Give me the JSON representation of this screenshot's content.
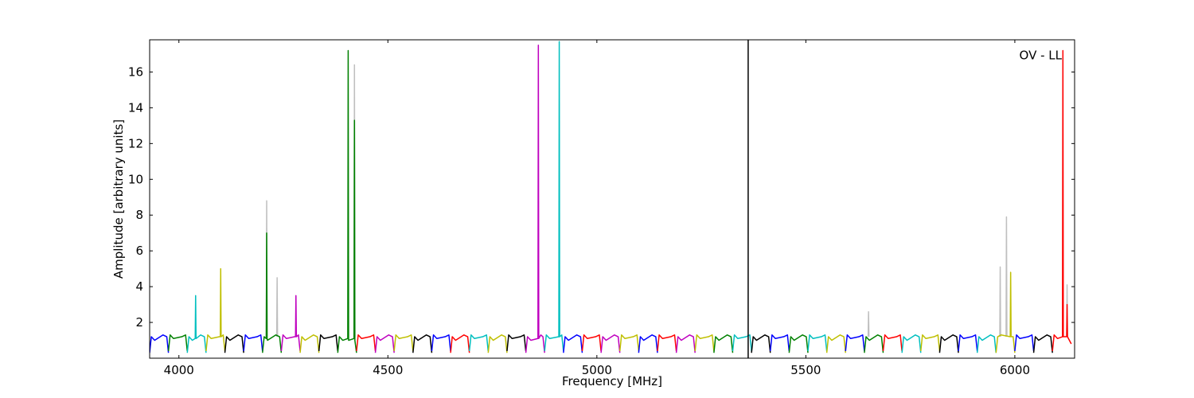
{
  "chart_data": {
    "type": "line",
    "annotation": "OV - LL",
    "x_label": "Frequency [MHz]",
    "y_label": "Amplitude [arbitrary units]",
    "xlim": [
      3930,
      6143
    ],
    "ylim": [
      0,
      17.8
    ],
    "xticks": [
      4000,
      4500,
      5000,
      5500,
      6000
    ],
    "yticks": [
      2,
      4,
      6,
      8,
      10,
      12,
      14,
      16
    ],
    "vlines": [
      5362
    ],
    "vline_color": "#000000",
    "series": [
      {
        "color": "#bfbfbf",
        "x": [
          4209,
          4210,
          4211,
          null,
          4234,
          4235,
          4236,
          null,
          4419,
          4420,
          4421,
          null,
          5649,
          5650,
          5651,
          null,
          5964,
          5965,
          5966,
          null,
          5979,
          5980,
          5981,
          null,
          6124,
          6125,
          6126
        ],
        "values": [
          1.2,
          8.8,
          1.2,
          null,
          1.2,
          4.5,
          1.2,
          null,
          1.2,
          16.4,
          1.2,
          null,
          1.2,
          2.6,
          1.2,
          null,
          1.2,
          5.1,
          1.2,
          null,
          1.2,
          7.9,
          1.2,
          null,
          1.2,
          4.1,
          1.2
        ]
      },
      {
        "color": "#0000ff",
        "x": [
          3930,
          3934,
          3942,
          3962,
          3971,
          3975
        ],
        "values": [
          0.3,
          1.2,
          1.0,
          1.3,
          1.2,
          0.3
        ]
      },
      {
        "color": "#008000",
        "x": [
          3975,
          3979,
          3987,
          4007,
          4016,
          4020
        ],
        "values": [
          0.4,
          1.3,
          1.1,
          1.2,
          1.3,
          0.4
        ]
      },
      {
        "color": "#00bfbf",
        "x": [
          4020,
          4024,
          4032,
          4039,
          4040,
          4041,
          4052,
          4061,
          4065
        ],
        "values": [
          0.3,
          1.2,
          1.0,
          1.1,
          3.5,
          1.1,
          1.3,
          1.2,
          0.3
        ]
      },
      {
        "color": "#bfbf00",
        "x": [
          4065,
          4069,
          4077,
          4097,
          4099,
          4100,
          4101,
          4106,
          4110
        ],
        "values": [
          0.4,
          1.3,
          1.1,
          1.2,
          1.2,
          5.0,
          1.2,
          1.3,
          0.4
        ]
      },
      {
        "color": "#000000",
        "x": [
          4110,
          4114,
          4122,
          4142,
          4151,
          4155
        ],
        "values": [
          0.3,
          1.2,
          1.0,
          1.3,
          1.2,
          0.3
        ]
      },
      {
        "color": "#0000ff",
        "x": [
          4155,
          4159,
          4167,
          4187,
          4196,
          4200
        ],
        "values": [
          0.4,
          1.3,
          1.1,
          1.2,
          1.3,
          0.4
        ]
      },
      {
        "color": "#008000",
        "x": [
          4200,
          4204,
          4209,
          4210,
          4211,
          4212,
          4232,
          4241,
          4245
        ],
        "values": [
          0.3,
          1.2,
          1.1,
          7.0,
          1.1,
          1.0,
          1.3,
          1.2,
          0.3
        ]
      },
      {
        "color": "#bf00bf",
        "x": [
          4245,
          4249,
          4257,
          4277,
          4279,
          4280,
          4281,
          4286,
          4290
        ],
        "values": [
          0.4,
          1.3,
          1.1,
          1.2,
          1.2,
          3.5,
          1.2,
          1.3,
          0.4
        ]
      },
      {
        "color": "#bfbf00",
        "x": [
          4290,
          4294,
          4302,
          4322,
          4331,
          4335
        ],
        "values": [
          0.3,
          1.2,
          1.0,
          1.3,
          1.2,
          0.3
        ]
      },
      {
        "color": "#000000",
        "x": [
          4335,
          4339,
          4347,
          4367,
          4376,
          4380
        ],
        "values": [
          0.4,
          1.3,
          1.1,
          1.2,
          1.3,
          0.4
        ]
      },
      {
        "color": "#008000",
        "x": [
          4380,
          4384,
          4392,
          4404,
          4405,
          4406,
          4419,
          4420,
          4421,
          4425
        ],
        "values": [
          0.3,
          1.2,
          1.0,
          1.1,
          17.2,
          1.0,
          1.1,
          13.3,
          1.0,
          0.3
        ]
      },
      {
        "color": "#ff0000",
        "x": [
          4425,
          4429,
          4437,
          4457,
          4466,
          4470
        ],
        "values": [
          0.4,
          1.3,
          1.1,
          1.2,
          1.3,
          0.4
        ]
      },
      {
        "color": "#bf00bf",
        "x": [
          4470,
          4474,
          4482,
          4502,
          4511,
          4515
        ],
        "values": [
          0.3,
          1.2,
          1.0,
          1.3,
          1.2,
          0.3
        ]
      },
      {
        "color": "#bfbf00",
        "x": [
          4515,
          4519,
          4527,
          4547,
          4556,
          4560
        ],
        "values": [
          0.4,
          1.3,
          1.1,
          1.2,
          1.3,
          0.4
        ]
      },
      {
        "color": "#000000",
        "x": [
          4560,
          4564,
          4572,
          4592,
          4601,
          4605
        ],
        "values": [
          0.3,
          1.2,
          1.0,
          1.3,
          1.2,
          0.3
        ]
      },
      {
        "color": "#0000ff",
        "x": [
          4605,
          4609,
          4617,
          4637,
          4646,
          4650
        ],
        "values": [
          0.4,
          1.3,
          1.1,
          1.2,
          1.3,
          0.4
        ]
      },
      {
        "color": "#ff0000",
        "x": [
          4650,
          4654,
          4662,
          4682,
          4691,
          4695
        ],
        "values": [
          0.3,
          1.2,
          1.0,
          1.3,
          1.2,
          0.3
        ]
      },
      {
        "color": "#00bfbf",
        "x": [
          4695,
          4699,
          4707,
          4727,
          4736,
          4740
        ],
        "values": [
          0.4,
          1.3,
          1.1,
          1.2,
          1.3,
          0.4
        ]
      },
      {
        "color": "#bfbf00",
        "x": [
          4740,
          4744,
          4752,
          4772,
          4781,
          4785
        ],
        "values": [
          0.3,
          1.2,
          1.0,
          1.3,
          1.2,
          0.3
        ]
      },
      {
        "color": "#000000",
        "x": [
          4785,
          4789,
          4797,
          4817,
          4826,
          4830
        ],
        "values": [
          0.4,
          1.3,
          1.1,
          1.2,
          1.3,
          0.4
        ]
      },
      {
        "color": "#bf00bf",
        "x": [
          4830,
          4834,
          4842,
          4859,
          4860,
          4861,
          4866,
          4871,
          4875
        ],
        "values": [
          0.3,
          1.2,
          1.0,
          1.1,
          17.5,
          1.1,
          1.3,
          1.2,
          0.3
        ]
      },
      {
        "color": "#00bfbf",
        "x": [
          4875,
          4879,
          4887,
          4909,
          4910,
          4911,
          4916,
          4920
        ],
        "values": [
          0.4,
          1.3,
          1.1,
          1.2,
          17.7,
          1.2,
          1.3,
          0.4
        ]
      },
      {
        "color": "#0000ff",
        "x": [
          4920,
          4924,
          4932,
          4952,
          4961,
          4965
        ],
        "values": [
          0.3,
          1.2,
          1.0,
          1.3,
          1.2,
          0.3
        ]
      },
      {
        "color": "#ff0000",
        "x": [
          4965,
          4969,
          4977,
          4997,
          5006,
          5010
        ],
        "values": [
          0.4,
          1.3,
          1.1,
          1.2,
          1.3,
          0.4
        ]
      },
      {
        "color": "#bf00bf",
        "x": [
          5010,
          5014,
          5022,
          5042,
          5051,
          5055
        ],
        "values": [
          0.3,
          1.2,
          1.0,
          1.3,
          1.2,
          0.3
        ]
      },
      {
        "color": "#bfbf00",
        "x": [
          5055,
          5059,
          5067,
          5087,
          5096,
          5100
        ],
        "values": [
          0.4,
          1.3,
          1.1,
          1.2,
          1.3,
          0.4
        ]
      },
      {
        "color": "#0000ff",
        "x": [
          5100,
          5104,
          5112,
          5132,
          5141,
          5145
        ],
        "values": [
          0.3,
          1.2,
          1.0,
          1.3,
          1.2,
          0.3
        ]
      },
      {
        "color": "#ff0000",
        "x": [
          5145,
          5149,
          5157,
          5177,
          5186,
          5190
        ],
        "values": [
          0.4,
          1.3,
          1.1,
          1.2,
          1.3,
          0.4
        ]
      },
      {
        "color": "#bf00bf",
        "x": [
          5190,
          5194,
          5202,
          5222,
          5231,
          5235
        ],
        "values": [
          0.3,
          1.2,
          1.0,
          1.3,
          1.2,
          0.3
        ]
      },
      {
        "color": "#bfbf00",
        "x": [
          5235,
          5239,
          5247,
          5267,
          5276,
          5280
        ],
        "values": [
          0.4,
          1.3,
          1.1,
          1.2,
          1.3,
          0.4
        ]
      },
      {
        "color": "#008000",
        "x": [
          5280,
          5284,
          5292,
          5312,
          5321,
          5325
        ],
        "values": [
          0.3,
          1.2,
          1.0,
          1.3,
          1.2,
          0.3
        ]
      },
      {
        "color": "#00bfbf",
        "x": [
          5325,
          5329,
          5337,
          5357,
          5366,
          5370
        ],
        "values": [
          0.4,
          1.3,
          1.1,
          1.2,
          1.3,
          0.4
        ]
      },
      {
        "color": "#000000",
        "x": [
          5370,
          5374,
          5382,
          5402,
          5411,
          5415
        ],
        "values": [
          0.3,
          1.2,
          1.0,
          1.3,
          1.2,
          0.3
        ]
      },
      {
        "color": "#0000ff",
        "x": [
          5415,
          5419,
          5427,
          5447,
          5456,
          5460
        ],
        "values": [
          0.4,
          1.3,
          1.1,
          1.2,
          1.3,
          0.4
        ]
      },
      {
        "color": "#008000",
        "x": [
          5460,
          5464,
          5472,
          5492,
          5501,
          5505
        ],
        "values": [
          0.3,
          1.2,
          1.0,
          1.3,
          1.2,
          0.3
        ]
      },
      {
        "color": "#00bfbf",
        "x": [
          5505,
          5509,
          5517,
          5537,
          5546,
          5550
        ],
        "values": [
          0.4,
          1.3,
          1.1,
          1.2,
          1.3,
          0.4
        ]
      },
      {
        "color": "#bfbf00",
        "x": [
          5550,
          5554,
          5562,
          5582,
          5591,
          5595
        ],
        "values": [
          0.3,
          1.2,
          1.0,
          1.3,
          1.2,
          0.3
        ]
      },
      {
        "color": "#0000ff",
        "x": [
          5595,
          5599,
          5607,
          5627,
          5636,
          5640
        ],
        "values": [
          0.4,
          1.3,
          1.1,
          1.2,
          1.3,
          0.4
        ]
      },
      {
        "color": "#008000",
        "x": [
          5640,
          5644,
          5652,
          5672,
          5681,
          5685
        ],
        "values": [
          0.3,
          1.2,
          1.0,
          1.3,
          1.2,
          0.3
        ]
      },
      {
        "color": "#ff0000",
        "x": [
          5685,
          5689,
          5697,
          5717,
          5726,
          5730
        ],
        "values": [
          0.4,
          1.3,
          1.1,
          1.2,
          1.3,
          0.4
        ]
      },
      {
        "color": "#00bfbf",
        "x": [
          5730,
          5734,
          5742,
          5762,
          5771,
          5775
        ],
        "values": [
          0.3,
          1.2,
          1.0,
          1.3,
          1.2,
          0.3
        ]
      },
      {
        "color": "#bfbf00",
        "x": [
          5775,
          5779,
          5787,
          5807,
          5816,
          5820
        ],
        "values": [
          0.4,
          1.3,
          1.1,
          1.2,
          1.3,
          0.4
        ]
      },
      {
        "color": "#000000",
        "x": [
          5820,
          5824,
          5832,
          5852,
          5861,
          5865
        ],
        "values": [
          0.3,
          1.2,
          1.0,
          1.3,
          1.2,
          0.3
        ]
      },
      {
        "color": "#0000ff",
        "x": [
          5865,
          5869,
          5877,
          5897,
          5906,
          5910
        ],
        "values": [
          0.4,
          1.3,
          1.1,
          1.2,
          1.3,
          0.4
        ]
      },
      {
        "color": "#00bfbf",
        "x": [
          5910,
          5914,
          5922,
          5942,
          5951,
          5955
        ],
        "values": [
          0.3,
          1.2,
          1.0,
          1.3,
          1.2,
          0.3
        ]
      },
      {
        "color": "#bfbf00",
        "x": [
          5955,
          5959,
          5967,
          5989,
          5990,
          5991,
          5996,
          6000
        ],
        "values": [
          0.3,
          1.2,
          1.3,
          1.2,
          4.8,
          1.2,
          1.2,
          0.3
        ]
      },
      {
        "color": "#0000ff",
        "x": [
          6000,
          6004,
          6012,
          6032,
          6041,
          6045
        ],
        "values": [
          0.4,
          1.3,
          1.1,
          1.2,
          1.3,
          0.4
        ]
      },
      {
        "color": "#000000",
        "x": [
          6045,
          6049,
          6057,
          6077,
          6086,
          6090
        ],
        "values": [
          0.3,
          1.2,
          1.0,
          1.3,
          1.2,
          0.3
        ]
      },
      {
        "color": "#ff0000",
        "x": [
          6090,
          6094,
          6102,
          6114,
          6115,
          6116,
          6124,
          6125,
          6126,
          6135
        ],
        "values": [
          0.4,
          1.3,
          1.1,
          1.2,
          17.2,
          1.2,
          1.2,
          3.0,
          1.2,
          0.8
        ]
      }
    ]
  }
}
